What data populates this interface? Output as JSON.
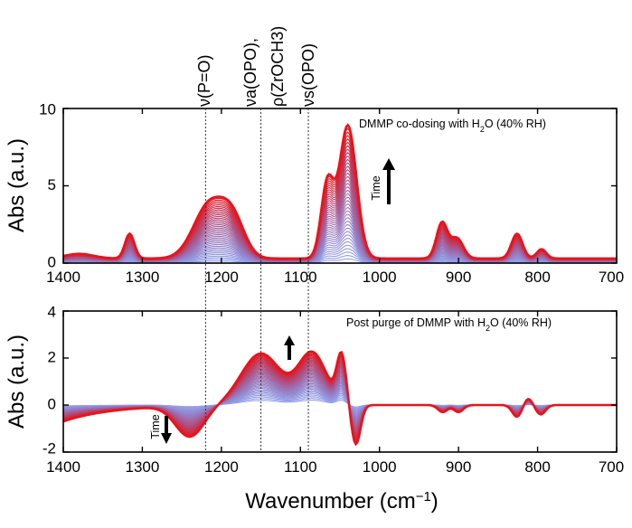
{
  "colors": {
    "start": "#1f3fd6",
    "end": "#e8141a",
    "axis": "#000000",
    "marker_line": "#333333"
  },
  "x_axis_label_main": "Wavenumber (cm",
  "x_axis_label_exp": "−1",
  "x_axis_label_close": ")",
  "peak_labels": [
    {
      "name": "nu-po",
      "text": "ν(P=O)",
      "wavenumber": 1220
    },
    {
      "name": "nu-a-opo",
      "text": "νa(OPO),",
      "wavenumber": 1150
    },
    {
      "name": "rho-zroch3",
      "text": "ρ(ZrOCH3)",
      "wavenumber": 1150
    },
    {
      "name": "nu-s-opo",
      "text": "νs(OPO)",
      "wavenumber": 1090
    }
  ],
  "chart_data": [
    {
      "type": "line",
      "title": "DMMP co-dosing with H2O (40% RH)",
      "annotation_main": "DMMP co-dosing with H",
      "annotation_sub": "2",
      "annotation_tail": "O (40% RH)",
      "time_label": "Time",
      "time_arrow": "up",
      "xlabel": "Wavenumber (cm-1)",
      "ylabel": "Abs (a.u.)",
      "xlim": [
        1400,
        700
      ],
      "ylim": [
        0,
        10
      ],
      "x_ticks": [
        1400,
        1300,
        1200,
        1100,
        1000,
        900,
        800,
        700
      ],
      "x_tick_labels": [
        "1400",
        "1300",
        "1200",
        "1100",
        "1000",
        "900",
        "800",
        "700"
      ],
      "y_ticks": [
        0,
        5,
        10
      ],
      "y_tick_labels": [
        "0",
        "5",
        "10"
      ],
      "vertical_markers": [
        1220,
        1150,
        1090
      ],
      "series_count": 40,
      "final_spectrum": {
        "baseline": 0.3,
        "peaks": [
          {
            "center": 1380,
            "height": 0.3,
            "width": 18
          },
          {
            "center": 1316,
            "height": 1.6,
            "width": 6
          },
          {
            "center": 1215,
            "height": 3.5,
            "width": 20
          },
          {
            "center": 1185,
            "height": 2.2,
            "width": 15
          },
          {
            "center": 1066,
            "height": 4.8,
            "width": 8
          },
          {
            "center": 1040,
            "height": 8.6,
            "width": 11
          },
          {
            "center": 921,
            "height": 2.3,
            "width": 7
          },
          {
            "center": 902,
            "height": 1.3,
            "width": 8
          },
          {
            "center": 826,
            "height": 1.6,
            "width": 7
          },
          {
            "center": 795,
            "height": 0.6,
            "width": 6
          }
        ]
      }
    },
    {
      "type": "line",
      "title": "Post purge of DMMP with H2O (40% RH)",
      "annotation_main": "Post purge of DMMP with H",
      "annotation_sub": "2",
      "annotation_tail": "O (40% RH)",
      "time_label": "Time",
      "time_arrow": "down",
      "xlabel": "Wavenumber (cm-1)",
      "ylabel": "Abs (a.u.)",
      "xlim": [
        1400,
        700
      ],
      "ylim": [
        -2,
        4
      ],
      "x_ticks": [
        1400,
        1300,
        1200,
        1100,
        1000,
        900,
        800,
        700
      ],
      "x_tick_labels": [
        "1400",
        "1300",
        "1200",
        "1100",
        "1000",
        "900",
        "800",
        "700"
      ],
      "y_ticks": [
        -2,
        0,
        2,
        4
      ],
      "y_tick_labels": [
        "-2",
        "0",
        "2",
        "4"
      ],
      "vertical_markers": [
        1220,
        1150,
        1090
      ],
      "series_count": 40,
      "final_spectrum": {
        "baseline_start": -0.7,
        "peaks": [
          {
            "center": 1240,
            "height": -1.3,
            "width": 18
          },
          {
            "center": 1150,
            "height": 2.2,
            "width": 25
          },
          {
            "center": 1085,
            "height": 2.2,
            "width": 18
          },
          {
            "center": 1048,
            "height": 2.0,
            "width": 6
          },
          {
            "center": 1030,
            "height": -1.7,
            "width": 6
          },
          {
            "center": 920,
            "height": -0.3,
            "width": 6
          },
          {
            "center": 900,
            "height": -0.3,
            "width": 6
          },
          {
            "center": 826,
            "height": -0.5,
            "width": 6
          },
          {
            "center": 812,
            "height": 0.3,
            "width": 5
          },
          {
            "center": 796,
            "height": -0.4,
            "width": 6
          }
        ]
      }
    }
  ]
}
